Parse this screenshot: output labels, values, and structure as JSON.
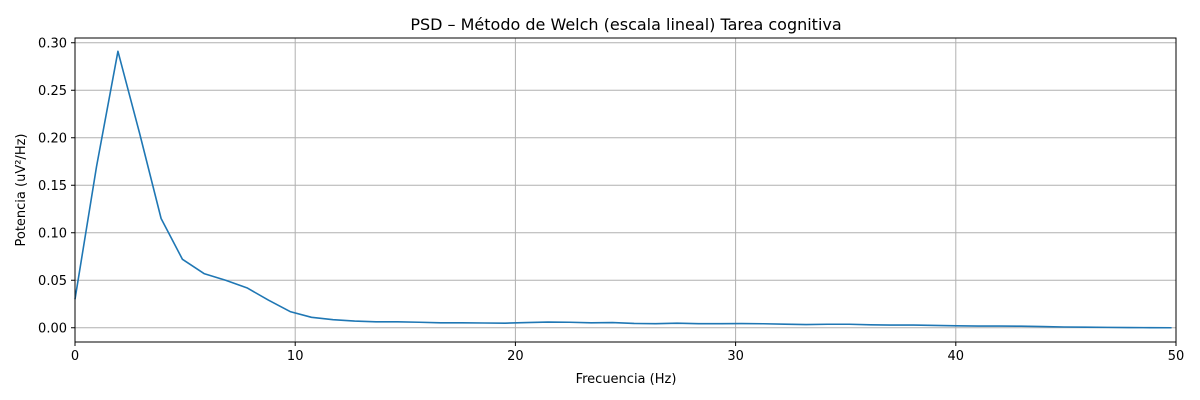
{
  "chart_data": {
    "type": "line",
    "title": "PSD – Método de Welch (escala lineal) Tarea cognitiva",
    "xlabel": "Frecuencia (Hz)",
    "ylabel": "Potencia (uV²/Hz)",
    "xlim": [
      0,
      50
    ],
    "ylim": [
      -0.015,
      0.305
    ],
    "xticks": [
      0,
      10,
      20,
      30,
      40,
      50
    ],
    "xtick_labels": [
      "0",
      "10",
      "20",
      "30",
      "40",
      "50"
    ],
    "yticks": [
      0.0,
      0.05,
      0.1,
      0.15,
      0.2,
      0.25,
      0.3
    ],
    "ytick_labels": [
      "0.00",
      "0.05",
      "0.10",
      "0.15",
      "0.20",
      "0.25",
      "0.30"
    ],
    "grid": true,
    "line_color": "#1f77b4",
    "series": [
      {
        "x": [
          0,
          0.98,
          1.95,
          2.93,
          3.91,
          4.88,
          5.86,
          6.84,
          7.81,
          8.79,
          9.77,
          10.74,
          11.72,
          12.7,
          13.67,
          14.65,
          15.63,
          16.6,
          17.58,
          18.55,
          19.53,
          20.51,
          21.48,
          22.46,
          23.44,
          24.41,
          25.39,
          26.37,
          27.34,
          28.32,
          29.3,
          30.27,
          31.25,
          32.23,
          33.2,
          34.18,
          35.16,
          36.13,
          37.11,
          38.09,
          39.06,
          40.04,
          41.02,
          41.99,
          42.97,
          43.95,
          44.92,
          45.9,
          46.88,
          47.85,
          48.83,
          49.8
        ],
        "y": [
          0.03,
          0.17,
          0.291,
          0.205,
          0.115,
          0.072,
          0.057,
          0.05,
          0.042,
          0.029,
          0.017,
          0.011,
          0.0085,
          0.007,
          0.0062,
          0.0062,
          0.0058,
          0.0052,
          0.0052,
          0.005,
          0.0048,
          0.0055,
          0.006,
          0.0058,
          0.0052,
          0.0055,
          0.0045,
          0.0043,
          0.0048,
          0.0043,
          0.0043,
          0.0044,
          0.0042,
          0.0038,
          0.0034,
          0.0037,
          0.0037,
          0.0031,
          0.0028,
          0.0028,
          0.0024,
          0.002,
          0.0018,
          0.0018,
          0.0016,
          0.0012,
          0.0008,
          0.0006,
          0.0004,
          0.0002,
          0.0001,
          0.0
        ]
      }
    ]
  }
}
